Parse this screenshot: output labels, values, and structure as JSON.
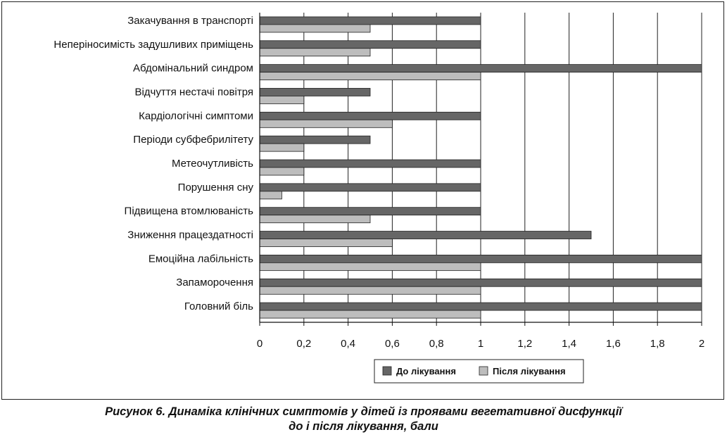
{
  "chart_data": {
    "type": "bar",
    "orientation": "horizontal",
    "categories": [
      "Закачування в транспорті",
      "Неперіносимість задушливих приміщень",
      "Абдомінальний синдром",
      "Відчуття нестачі повітря",
      "Кардіологічні симптоми",
      "Періоди субфебрилітету",
      "Метеочутливість",
      "Порушення сну",
      "Підвищена втомлюваність",
      "Зниження працездатності",
      "Емоційна лабільність",
      "Запаморочення",
      "Головний біль"
    ],
    "series": [
      {
        "name": "До лікування",
        "color": "#666666",
        "values": [
          1,
          1,
          2,
          0.5,
          1,
          0.5,
          1,
          1,
          1,
          1.5,
          2,
          2,
          2
        ]
      },
      {
        "name": "Після лікування",
        "color": "#bdbdbd",
        "values": [
          0.5,
          0.5,
          1,
          0.2,
          0.6,
          0.2,
          0.2,
          0.1,
          0.5,
          0.6,
          1,
          1,
          1
        ]
      }
    ],
    "x_ticks": [
      "0",
      "0,2",
      "0,4",
      "0,6",
      "0,8",
      "1",
      "1,2",
      "1,4",
      "1,6",
      "1,8",
      "2"
    ],
    "xlim": [
      0,
      2
    ],
    "grid": "vertical",
    "legend_position": "bottom"
  },
  "caption": {
    "line1": "Рисунок 6. Динаміка клінічних симптомів у дітей із проявами вегетативної дисфункції",
    "line2": "до і після лікування, бали"
  }
}
